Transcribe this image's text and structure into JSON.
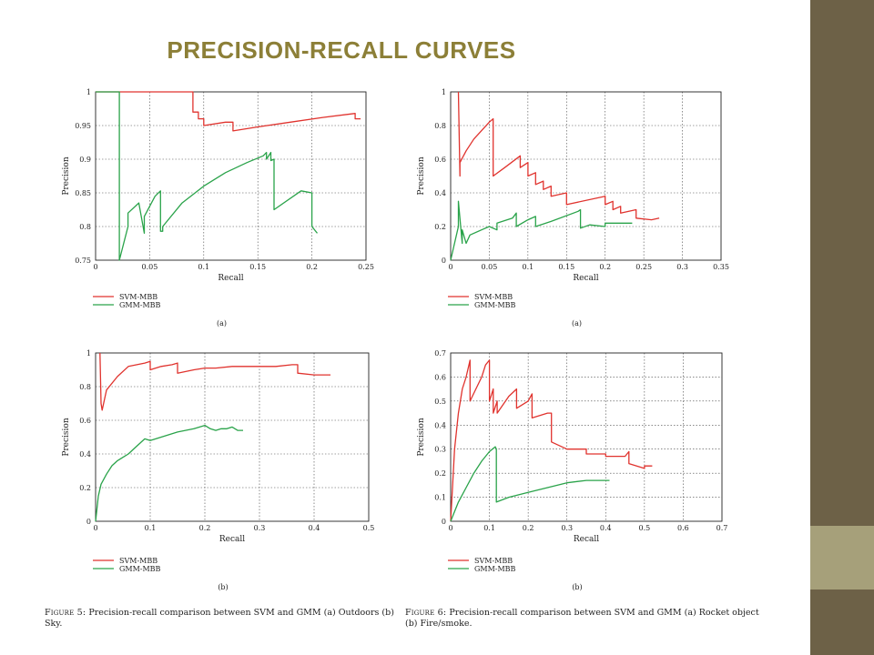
{
  "slide": {
    "title": "PRECISION-RECALL CURVES",
    "colors": {
      "title": "#8c7f37",
      "sidebar": "#6d6147",
      "sidebar_accent": "#a6a07a"
    }
  },
  "captions": {
    "fig5": {
      "head": "Figure 5:",
      "text": "Precision-recall comparison between SVM and GMM (a) Outdoors (b) Sky."
    },
    "fig6": {
      "head": "Figure 6:",
      "text": "Precision-recall comparison between SVM and GMM (a) Rocket object (b) Fire/smoke."
    }
  },
  "chart_data": [
    {
      "type": "line",
      "sublabel": "(a)",
      "xlabel": "Recall",
      "ylabel": "Precision",
      "xlim": [
        0,
        0.25
      ],
      "ylim": [
        0.75,
        1
      ],
      "xticks": [
        "0",
        "0.05",
        "0.1",
        "0.15",
        "0.2",
        "0.25"
      ],
      "yticks": [
        "0.75",
        "0.8",
        "0.85",
        "0.9",
        "0.95",
        "1"
      ],
      "grid": true,
      "legend_position": "below",
      "series": [
        {
          "name": "SVM-MBB",
          "color": "#e0332e",
          "x": [
            0,
            0.09,
            0.09,
            0.095,
            0.095,
            0.1,
            0.1,
            0.12,
            0.127,
            0.127,
            0.15,
            0.18,
            0.21,
            0.24,
            0.24,
            0.245
          ],
          "y": [
            1,
            1,
            0.97,
            0.97,
            0.96,
            0.96,
            0.95,
            0.955,
            0.955,
            0.942,
            0.948,
            0.955,
            0.962,
            0.968,
            0.96,
            0.96
          ]
        },
        {
          "name": "GMM-MBB",
          "color": "#2aa34a",
          "x": [
            0,
            0.022,
            0.022,
            0.022,
            0.03,
            0.03,
            0.04,
            0.045,
            0.045,
            0.055,
            0.06,
            0.06,
            0.062,
            0.062,
            0.08,
            0.1,
            0.12,
            0.14,
            0.155,
            0.158,
            0.158,
            0.162,
            0.162,
            0.165,
            0.165,
            0.19,
            0.2,
            0.2,
            0.205
          ],
          "y": [
            1,
            1,
            1,
            0.75,
            0.8,
            0.82,
            0.835,
            0.79,
            0.815,
            0.845,
            0.853,
            0.793,
            0.793,
            0.8,
            0.835,
            0.86,
            0.88,
            0.895,
            0.905,
            0.91,
            0.9,
            0.91,
            0.898,
            0.9,
            0.825,
            0.853,
            0.85,
            0.8,
            0.79
          ]
        }
      ]
    },
    {
      "type": "line",
      "sublabel": "(a)",
      "xlabel": "Recall",
      "ylabel": "Precision",
      "xlim": [
        0,
        0.35
      ],
      "ylim": [
        0,
        1
      ],
      "xticks": [
        "0",
        "0.05",
        "0.1",
        "0.15",
        "0.2",
        "0.25",
        "0.3",
        "0.35"
      ],
      "yticks": [
        "0",
        "0.2",
        "0.4",
        "0.6",
        "0.8",
        "1"
      ],
      "grid": true,
      "legend_position": "below",
      "series": [
        {
          "name": "SVM-MBB",
          "color": "#e0332e",
          "x": [
            0.01,
            0.012,
            0.012,
            0.02,
            0.03,
            0.05,
            0.055,
            0.055,
            0.07,
            0.09,
            0.09,
            0.1,
            0.1,
            0.11,
            0.11,
            0.12,
            0.12,
            0.13,
            0.13,
            0.15,
            0.15,
            0.2,
            0.2,
            0.21,
            0.21,
            0.22,
            0.22,
            0.24,
            0.24,
            0.26,
            0.27
          ],
          "y": [
            1,
            0.5,
            0.58,
            0.65,
            0.72,
            0.82,
            0.84,
            0.5,
            0.55,
            0.62,
            0.55,
            0.58,
            0.5,
            0.52,
            0.45,
            0.47,
            0.42,
            0.44,
            0.38,
            0.4,
            0.33,
            0.38,
            0.33,
            0.35,
            0.3,
            0.32,
            0.28,
            0.3,
            0.25,
            0.24,
            0.25
          ]
        },
        {
          "name": "GMM-MBB",
          "color": "#2aa34a",
          "x": [
            0,
            0.01,
            0.01,
            0.015,
            0.015,
            0.02,
            0.025,
            0.04,
            0.05,
            0.06,
            0.06,
            0.08,
            0.085,
            0.085,
            0.1,
            0.11,
            0.11,
            0.13,
            0.165,
            0.168,
            0.168,
            0.18,
            0.2,
            0.2,
            0.235
          ],
          "y": [
            0,
            0.2,
            0.35,
            0.1,
            0.18,
            0.1,
            0.15,
            0.18,
            0.2,
            0.18,
            0.22,
            0.25,
            0.28,
            0.2,
            0.24,
            0.26,
            0.2,
            0.23,
            0.29,
            0.3,
            0.19,
            0.21,
            0.2,
            0.22,
            0.22
          ]
        }
      ]
    },
    {
      "type": "line",
      "sublabel": "(b)",
      "xlabel": "Recall",
      "ylabel": "Precision",
      "xlim": [
        0,
        0.5
      ],
      "ylim": [
        0,
        1
      ],
      "xticks": [
        "0",
        "0.1",
        "0.2",
        "0.3",
        "0.4",
        "0.5"
      ],
      "yticks": [
        "0",
        "0.2",
        "0.4",
        "0.6",
        "0.8",
        "1"
      ],
      "grid": true,
      "legend_position": "below",
      "series": [
        {
          "name": "SVM-MBB",
          "color": "#e0332e",
          "x": [
            0.008,
            0.01,
            0.012,
            0.02,
            0.04,
            0.06,
            0.09,
            0.1,
            0.1,
            0.12,
            0.14,
            0.15,
            0.15,
            0.18,
            0.2,
            0.22,
            0.25,
            0.27,
            0.3,
            0.33,
            0.36,
            0.37,
            0.37,
            0.4,
            0.42,
            0.43
          ],
          "y": [
            1,
            0.7,
            0.66,
            0.78,
            0.86,
            0.92,
            0.94,
            0.95,
            0.9,
            0.92,
            0.93,
            0.94,
            0.88,
            0.9,
            0.91,
            0.91,
            0.92,
            0.92,
            0.92,
            0.92,
            0.93,
            0.93,
            0.88,
            0.87,
            0.87,
            0.87
          ]
        },
        {
          "name": "GMM-MBB",
          "color": "#2aa34a",
          "x": [
            0,
            0.005,
            0.01,
            0.02,
            0.03,
            0.04,
            0.05,
            0.06,
            0.07,
            0.08,
            0.09,
            0.1,
            0.12,
            0.15,
            0.18,
            0.2,
            0.21,
            0.22,
            0.23,
            0.24,
            0.25,
            0.26,
            0.27
          ],
          "y": [
            0,
            0.15,
            0.22,
            0.28,
            0.33,
            0.36,
            0.38,
            0.4,
            0.43,
            0.46,
            0.49,
            0.48,
            0.5,
            0.53,
            0.55,
            0.57,
            0.55,
            0.54,
            0.55,
            0.55,
            0.56,
            0.54,
            0.54
          ]
        }
      ]
    },
    {
      "type": "line",
      "sublabel": "(b)",
      "xlabel": "Recall",
      "ylabel": "Precision",
      "xlim": [
        0,
        0.7
      ],
      "ylim": [
        0,
        0.7
      ],
      "xticks": [
        "0",
        "0.1",
        "0.2",
        "0.3",
        "0.4",
        "0.5",
        "0.6",
        "0.7"
      ],
      "yticks": [
        "0",
        "0.1",
        "0.2",
        "0.3",
        "0.4",
        "0.5",
        "0.6",
        "0.7"
      ],
      "grid": true,
      "legend_position": "below",
      "series": [
        {
          "name": "SVM-MBB",
          "color": "#e0332e",
          "x": [
            0,
            0.01,
            0.02,
            0.03,
            0.04,
            0.05,
            0.05,
            0.08,
            0.09,
            0.1,
            0.1,
            0.11,
            0.11,
            0.12,
            0.12,
            0.15,
            0.17,
            0.17,
            0.2,
            0.21,
            0.21,
            0.25,
            0.26,
            0.26,
            0.3,
            0.3,
            0.35,
            0.35,
            0.4,
            0.4,
            0.45,
            0.46,
            0.46,
            0.5,
            0.5,
            0.52
          ],
          "y": [
            0,
            0.3,
            0.45,
            0.55,
            0.6,
            0.67,
            0.5,
            0.6,
            0.65,
            0.67,
            0.5,
            0.55,
            0.45,
            0.5,
            0.45,
            0.52,
            0.55,
            0.47,
            0.5,
            0.53,
            0.43,
            0.45,
            0.45,
            0.33,
            0.3,
            0.3,
            0.3,
            0.28,
            0.28,
            0.27,
            0.27,
            0.29,
            0.24,
            0.22,
            0.23,
            0.23
          ]
        },
        {
          "name": "GMM-MBB",
          "color": "#2aa34a",
          "x": [
            0,
            0.02,
            0.04,
            0.06,
            0.08,
            0.1,
            0.115,
            0.118,
            0.118,
            0.15,
            0.2,
            0.25,
            0.3,
            0.35,
            0.4,
            0.41
          ],
          "y": [
            0,
            0.08,
            0.14,
            0.2,
            0.25,
            0.29,
            0.31,
            0.3,
            0.08,
            0.1,
            0.12,
            0.14,
            0.16,
            0.17,
            0.17,
            0.17
          ]
        }
      ]
    }
  ]
}
